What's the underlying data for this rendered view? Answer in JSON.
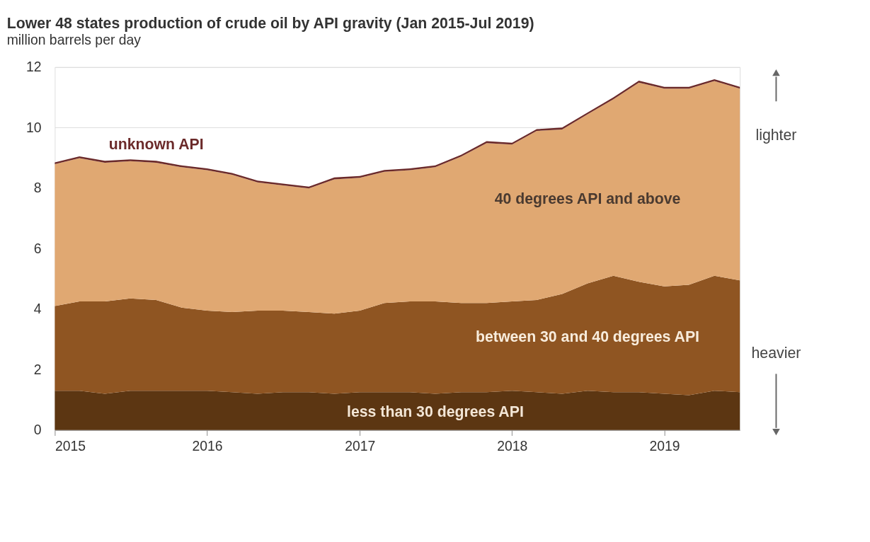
{
  "chart_data": {
    "type": "area",
    "title": "Lower 48 states production of crude oil by API gravity (Jan 2015-Jul 2019)",
    "subtitle": "million barrels per day",
    "x": [
      "2015-01",
      "2015-03",
      "2015-05",
      "2015-07",
      "2015-09",
      "2015-11",
      "2016-01",
      "2016-03",
      "2016-05",
      "2016-07",
      "2016-09",
      "2016-11",
      "2017-01",
      "2017-03",
      "2017-05",
      "2017-07",
      "2017-09",
      "2017-11",
      "2018-01",
      "2018-03",
      "2018-05",
      "2018-07",
      "2018-09",
      "2018-11",
      "2019-01",
      "2019-03",
      "2019-05",
      "2019-07"
    ],
    "stacked": true,
    "series": [
      {
        "name": "less than 30 degrees API",
        "color": "#5c3612",
        "values": [
          1.3,
          1.3,
          1.2,
          1.3,
          1.3,
          1.3,
          1.3,
          1.25,
          1.2,
          1.25,
          1.25,
          1.2,
          1.25,
          1.25,
          1.25,
          1.2,
          1.25,
          1.25,
          1.3,
          1.25,
          1.2,
          1.3,
          1.25,
          1.25,
          1.2,
          1.15,
          1.3,
          1.25
        ]
      },
      {
        "name": "between 30 and 40 degrees API",
        "color": "#8f5522",
        "values": [
          2.8,
          2.95,
          3.05,
          3.05,
          3.0,
          2.75,
          2.65,
          2.65,
          2.75,
          2.7,
          2.65,
          2.65,
          2.7,
          2.95,
          3.0,
          3.05,
          2.95,
          2.95,
          2.95,
          3.05,
          3.3,
          3.55,
          3.85,
          3.65,
          3.55,
          3.65,
          3.8,
          3.7
        ]
      },
      {
        "name": "40 degrees API and above",
        "color": "#e0a872",
        "values": [
          4.69,
          4.74,
          4.59,
          4.54,
          4.54,
          4.64,
          4.64,
          4.54,
          4.24,
          4.14,
          4.09,
          4.44,
          4.39,
          4.34,
          4.34,
          4.44,
          4.84,
          5.29,
          5.19,
          5.59,
          5.44,
          5.59,
          5.84,
          6.59,
          6.54,
          6.49,
          6.44,
          6.34
        ]
      },
      {
        "name": "unknown API",
        "color": "#6b2a2a",
        "values": [
          0.06,
          0.06,
          0.06,
          0.06,
          0.06,
          0.06,
          0.06,
          0.06,
          0.06,
          0.06,
          0.06,
          0.06,
          0.06,
          0.06,
          0.06,
          0.06,
          0.06,
          0.06,
          0.06,
          0.06,
          0.06,
          0.06,
          0.06,
          0.06,
          0.06,
          0.06,
          0.06,
          0.06
        ]
      }
    ],
    "xlim": [
      "2015-01",
      "2019-07"
    ],
    "xticks": [
      "2015",
      "2016",
      "2017",
      "2018",
      "2019"
    ],
    "ylim": [
      0,
      12
    ],
    "yticks": [
      0,
      2,
      4,
      6,
      8,
      10,
      12
    ],
    "grid": "y",
    "legend": false,
    "annotations": [
      "lighter",
      "heavier"
    ]
  }
}
